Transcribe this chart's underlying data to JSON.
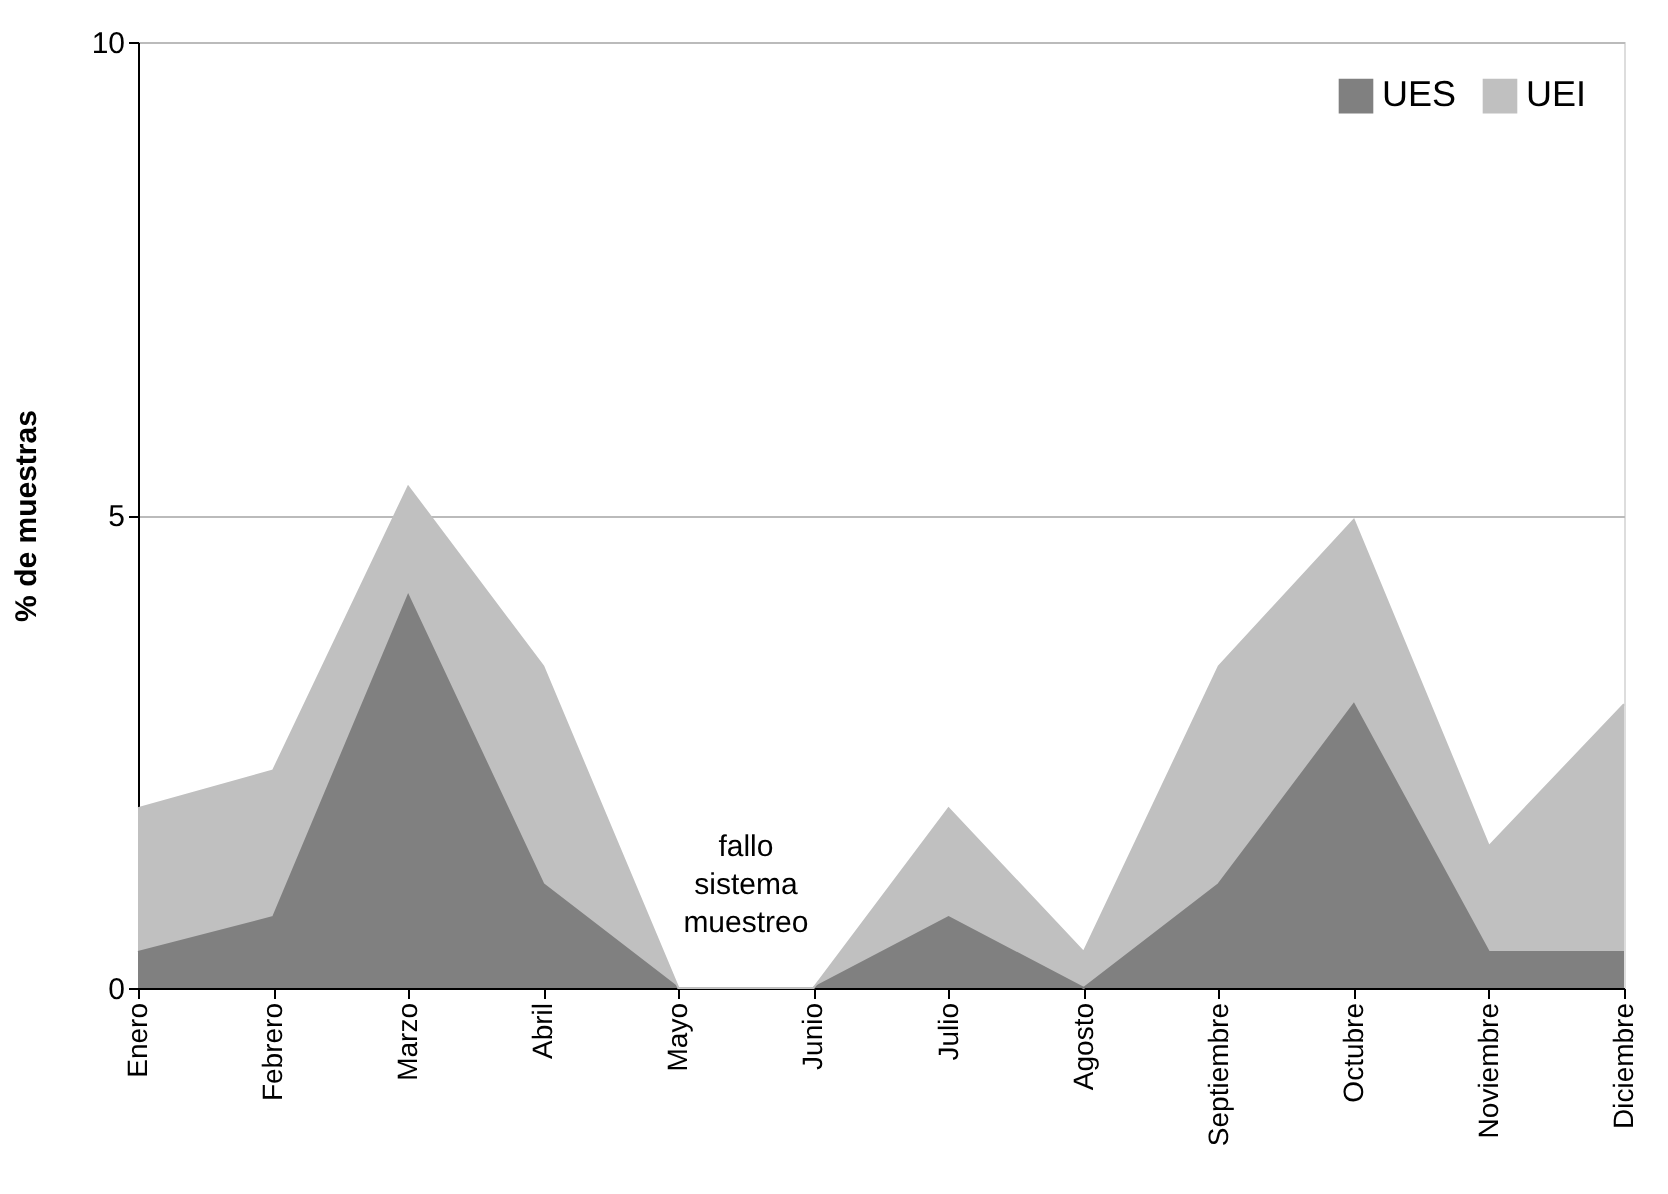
{
  "chart_data": {
    "type": "area",
    "stacked": true,
    "ylabel": "% de muestras",
    "categories": [
      "Enero",
      "Febrero",
      "Marzo",
      "Abril",
      "Mayo",
      "Junio",
      "Julio",
      "Agosto",
      "Septiembre",
      "Octubre",
      "Noviembre",
      "Diciembre"
    ],
    "series": [
      {
        "name": "UES",
        "color": "#808080",
        "values": [
          0.38,
          0.75,
          4.15,
          1.1,
          0,
          0,
          0.75,
          0,
          1.1,
          3.0,
          0.38,
          0.38
        ]
      },
      {
        "name": "UEI",
        "color": "#c0c0c0",
        "values": [
          1.52,
          1.55,
          1.15,
          2.3,
          0,
          0,
          1.15,
          0.38,
          2.3,
          1.95,
          1.12,
          2.62
        ]
      }
    ],
    "ylim": [
      0,
      10
    ],
    "yticks": [
      0,
      5,
      10
    ],
    "grid": "y",
    "legend": "top right",
    "annotations": [
      "fallo sistema muestreo"
    ]
  }
}
